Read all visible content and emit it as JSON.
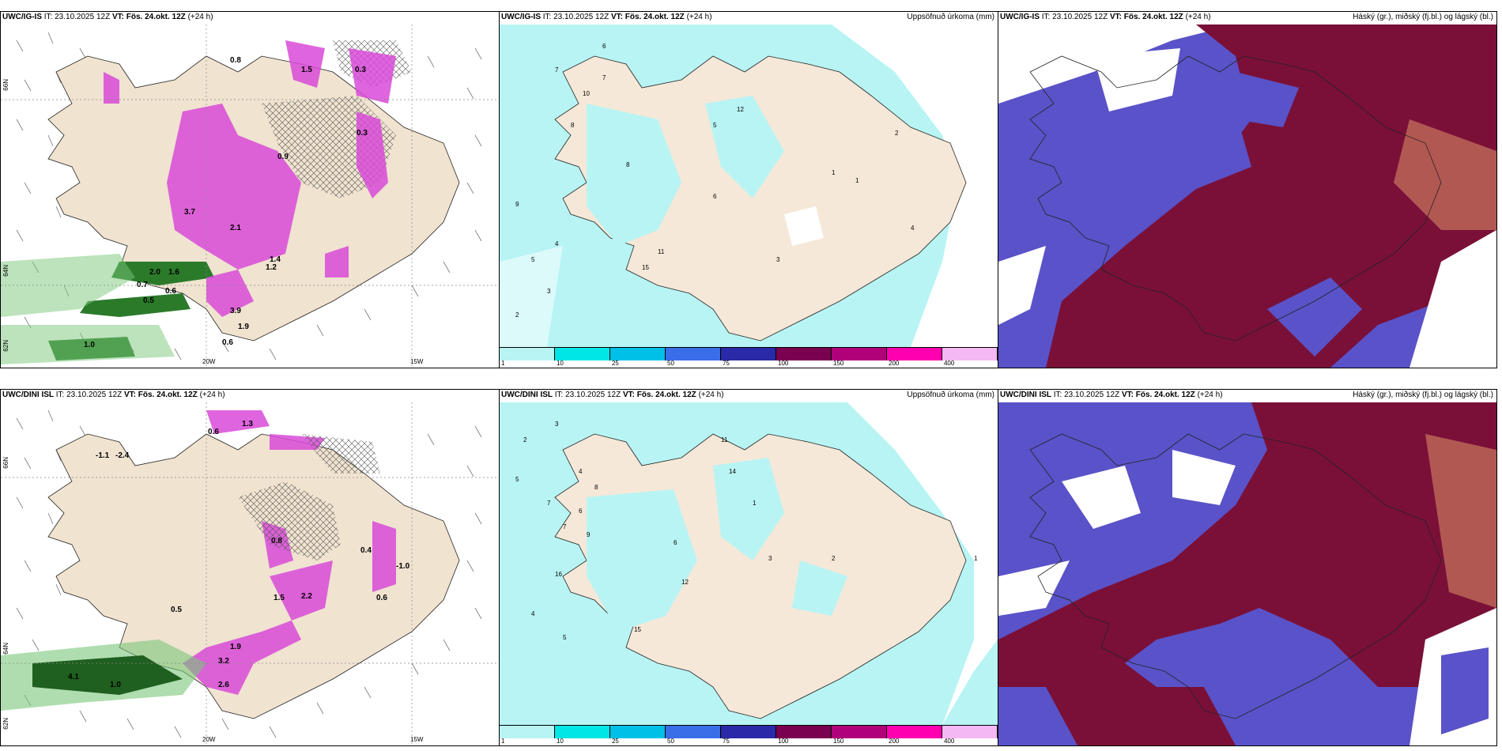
{
  "header_common": {
    "it_prefix": "IT:",
    "it_value": "23.10.2025 12Z",
    "vt_prefix": "VT:",
    "vt_value": "Fös. 24.okt. 12Z",
    "lead": "(+24 h)"
  },
  "rows": [
    {
      "model": "UWC/IG-IS"
    },
    {
      "model": "UWC/DINI ISL"
    }
  ],
  "precip_title": "Uppsöfnuð úrkoma (mm)",
  "cloud_title": "Háský (gr.), miðský (fj.bl.) og lágský (bl.)",
  "legend": {
    "colors": [
      "#b8f4f4",
      "#00e5e5",
      "#00c0e8",
      "#3a6ee8",
      "#2a2aa8",
      "#7a0050",
      "#b0007a",
      "#ff00b0",
      "#f4b8f4"
    ],
    "ticks": [
      "1",
      "10",
      "25",
      "50",
      "75",
      "100",
      "150",
      "200",
      "400"
    ]
  },
  "axis": {
    "lon_left": "20W",
    "lon_right": "15W",
    "lat_top": "66N",
    "lat_mid": "64N",
    "lat_bottom": "62N"
  },
  "colors": {
    "land": "#f0e3d0",
    "precip_light": "#b8f4f4",
    "cloud_low": "#5a52c8",
    "cloud_high": "#7a1038",
    "cloud_mid": "#c06a5a",
    "green": "#7ac77a",
    "magenta": "#d84ad8"
  },
  "top_left_labels": [
    "0.8",
    "1.5",
    "0.3",
    "3.7",
    "2.1",
    "1.4",
    "2.0",
    "1.6",
    "0.7",
    "0.5",
    "0.6",
    "3.9",
    "1.9",
    "1.0",
    "0.3",
    "0.6",
    "0.9",
    "1.2"
  ],
  "bottom_left_labels": [
    "0.6",
    "1.3",
    "-1.1",
    "-2.4",
    "0.8",
    "-1.0",
    "1.5",
    "2.2",
    "0.6",
    "4.1",
    "3.2",
    "1.9",
    "2.6",
    "1.0",
    "0.5",
    "0.4"
  ],
  "top_mid_labels": [
    "6",
    "7",
    "8",
    "10",
    "9",
    "5",
    "3",
    "4",
    "2",
    "12",
    "15",
    "11",
    "1",
    "7",
    "5",
    "3",
    "2",
    "1",
    "4",
    "6",
    "8"
  ],
  "bottom_mid_labels": [
    "3",
    "5",
    "7",
    "4",
    "6",
    "2",
    "8",
    "11",
    "14",
    "16",
    "12",
    "15",
    "9",
    "1",
    "3",
    "4",
    "2",
    "1",
    "6",
    "7",
    "5"
  ]
}
